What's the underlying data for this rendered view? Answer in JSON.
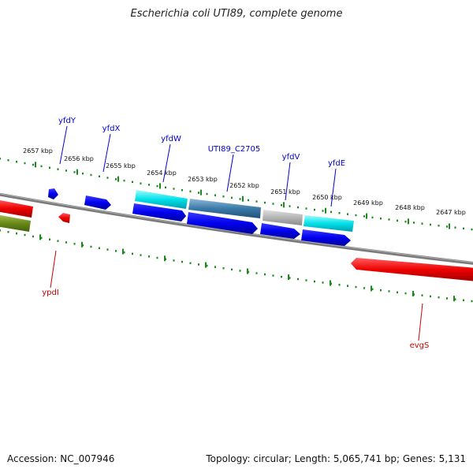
{
  "title": "Escherichia coli UTI89, complete genome",
  "footer": {
    "accession": "Accession: NC_007946",
    "summary": "Topology: circular; Length: 5,065,741 bp; Genes: 5,131"
  },
  "colors": {
    "backbone": "#808080",
    "ruler": "#1a8a1a",
    "forward_label": "#0000cc",
    "reverse_label": "#cc0000",
    "blue": "#0000ee",
    "cyan": "#00e0e8",
    "steel": "#3a7aa8",
    "gray": "#b4b4b4",
    "red": "#ee0000",
    "olive": "#6a8a1a"
  },
  "ruler_labels": [
    "2657 kbp",
    "2656 kbp",
    "2655 kbp",
    "2654 kbp",
    "2653 kbp",
    "2652 kbp",
    "2651 kbp",
    "2650 kbp",
    "2649 kbp",
    "2648 kbp",
    "2647 kbp"
  ],
  "gene_labels": {
    "top": [
      "yfdY",
      "yfdX",
      "yfdW",
      "UTI89_C2705",
      "yfdV",
      "yfdE"
    ],
    "bottom": [
      "ypdI",
      "evgS"
    ]
  }
}
